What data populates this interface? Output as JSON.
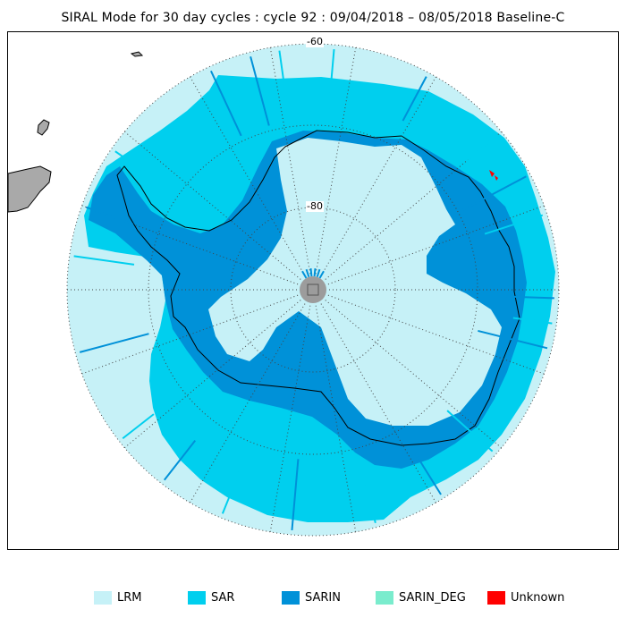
{
  "title": "SIRAL Mode for 30 day cycles : cycle 92 : 09/04/2018 – 08/05/2018 Baseline-C",
  "map": {
    "lat_labels": [
      "-60",
      "-80"
    ],
    "colors": {
      "background": "#ffffff",
      "land_other": "#a9a9a9",
      "lrm": "#c6f1f7",
      "sar": "#00cfee",
      "sarin": "#0091d8",
      "sarin_deg": "#7aeccd",
      "unknown": "#ff0000",
      "pole_hole": "#9c9c9c",
      "grid": "#444444",
      "coast": "#000000"
    }
  },
  "legend": {
    "items": [
      {
        "label": "LRM",
        "color": "#c6f1f7"
      },
      {
        "label": "SAR",
        "color": "#00cfee"
      },
      {
        "label": "SARIN",
        "color": "#0091d8"
      },
      {
        "label": "SARIN_DEG",
        "color": "#7aeccd"
      },
      {
        "label": "Unknown",
        "color": "#ff0000"
      }
    ]
  }
}
